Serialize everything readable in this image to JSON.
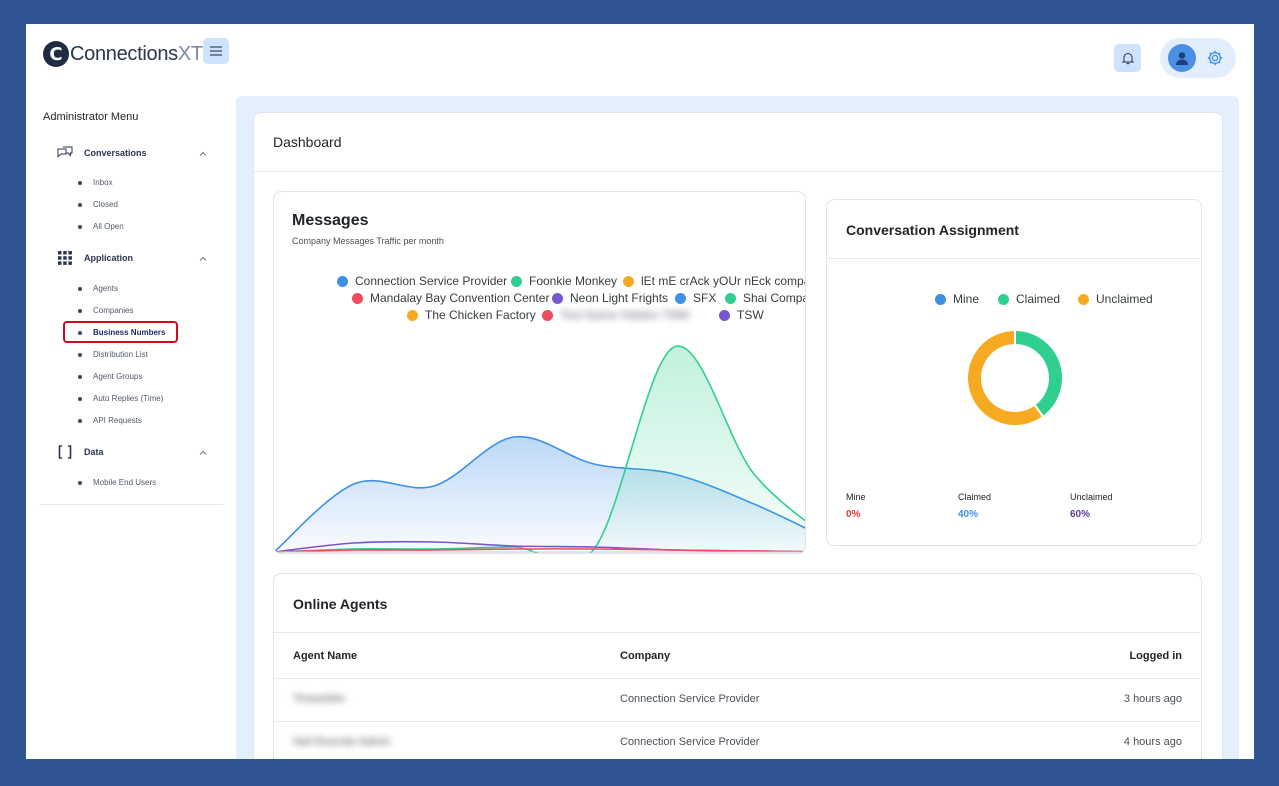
{
  "header": {
    "logo_text": "Connections",
    "logo_suffix": "XT",
    "logo_tm": "™"
  },
  "sidebar": {
    "title": "Administrator Menu",
    "sections": [
      {
        "label": "Conversations",
        "items": [
          "Inbox",
          "Closed",
          "All Open"
        ]
      },
      {
        "label": "Application",
        "items": [
          "Agents",
          "Companies",
          "Business Numbers",
          "Distribution List",
          "Agent Groups",
          "Auto Replies (Time)",
          "API Requests"
        ]
      },
      {
        "label": "Data",
        "items": [
          "Mobile End Users"
        ]
      }
    ],
    "active_item": "Business Numbers"
  },
  "dashboard": {
    "title": "Dashboard"
  },
  "messages": {
    "title": "Messages",
    "subtitle": "Company Messages Traffic per month",
    "legend": [
      {
        "name": "Connection Service Provider",
        "color": "#3d8fe8"
      },
      {
        "name": "Foonkie Monkey",
        "color": "#2fd08f"
      },
      {
        "name": "lEt mE crAck yOUr nEck company",
        "color": "#f6aa22"
      },
      {
        "name": "Mandalay Bay Convention Center",
        "color": "#ef4a5e"
      },
      {
        "name": "Neon Light Frights",
        "color": "#7657d0"
      },
      {
        "name": "SFX",
        "color": "#3d8fe8"
      },
      {
        "name": "Shai Company",
        "color": "#2fd08f"
      },
      {
        "name": "The Chicken Factory",
        "color": "#f6aa22"
      },
      {
        "name": "Test Name Hidden TMM",
        "color": "#ef4a5e"
      },
      {
        "name": "TSW",
        "color": "#7657d0"
      }
    ]
  },
  "chart_data": {
    "type": "area",
    "title": "Messages",
    "subtitle": "Company Messages Traffic per month",
    "x": [
      0,
      1,
      2,
      3,
      4,
      5,
      6,
      7
    ],
    "ylim": [
      0,
      210
    ],
    "series": [
      {
        "name": "Connection Service Provider",
        "values": [
          0,
          68,
          66,
          115,
          88,
          78,
          48,
          10
        ]
      },
      {
        "name": "Foonkie Monkey",
        "values": [
          0,
          3,
          3,
          5,
          3,
          205,
          78,
          10
        ]
      },
      {
        "name": "Neon Light Frights",
        "values": [
          0,
          9,
          10,
          6,
          5,
          2,
          1,
          0
        ]
      },
      {
        "name": "Mandalay Bay Convention Center",
        "values": [
          0,
          2,
          2,
          3,
          3,
          2,
          1,
          0
        ]
      }
    ]
  },
  "assignment": {
    "title": "Conversation Assignment",
    "legend": [
      {
        "name": "Mine",
        "color": "#3d8fe8"
      },
      {
        "name": "Claimed",
        "color": "#2fd08f"
      },
      {
        "name": "Unclaimed",
        "color": "#f6aa22"
      }
    ],
    "stats": [
      {
        "label": "Mine",
        "value": "0%",
        "color": "#e53935"
      },
      {
        "label": "Claimed",
        "value": "40%",
        "color": "#3d8fe8"
      },
      {
        "label": "Unclaimed",
        "value": "60%",
        "color": "#5b3aa6"
      }
    ],
    "donut": [
      {
        "name": "Claimed",
        "value": 40,
        "color": "#2fd08f"
      },
      {
        "name": "Unclaimed",
        "value": 60,
        "color": "#f6aa22"
      }
    ]
  },
  "agents": {
    "title": "Online Agents",
    "columns": [
      "Agent Name",
      "Company",
      "Logged in"
    ],
    "rows": [
      {
        "name": "Threeshlm",
        "company": "Connection Service Provider",
        "logged_in": "3 hours ago"
      },
      {
        "name": "Neil Rourcler Admin",
        "company": "Connection Service Provider",
        "logged_in": "4 hours ago"
      }
    ]
  }
}
